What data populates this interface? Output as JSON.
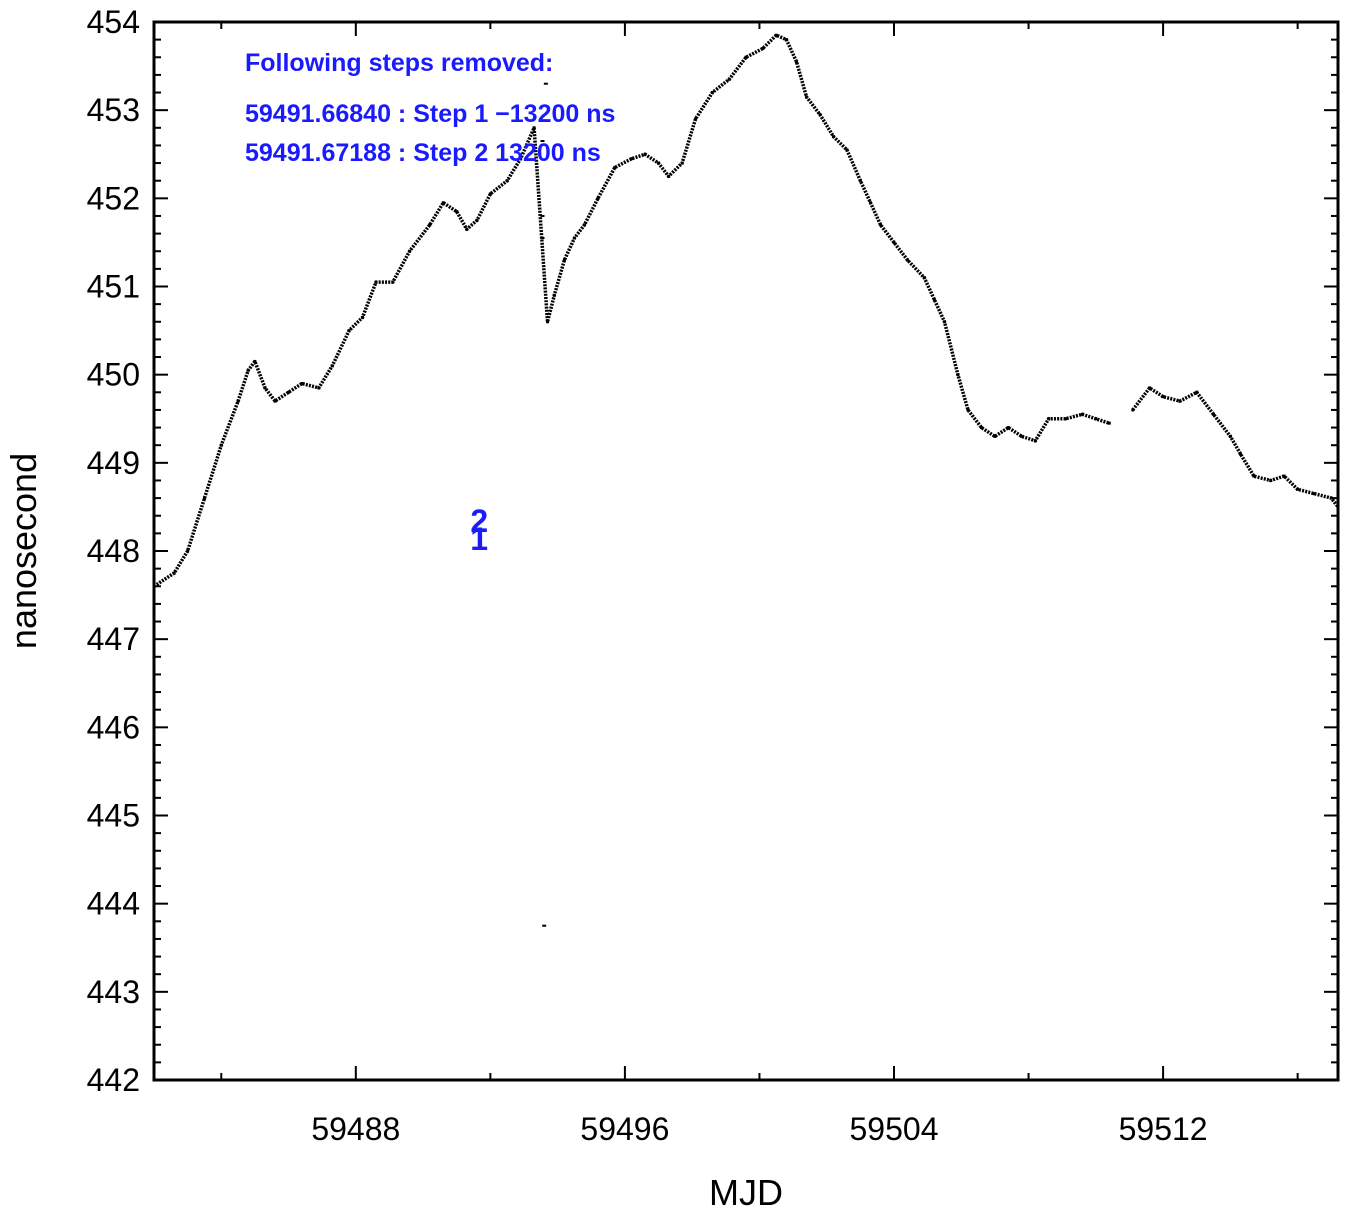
{
  "chart_data": {
    "type": "scatter",
    "title": "",
    "xlabel": "MJD",
    "ylabel": "nanosecond",
    "xlim": [
      59482,
      59517.2
    ],
    "ylim": [
      442,
      454
    ],
    "xticks": [
      59488,
      59496,
      59504,
      59512
    ],
    "yticks": [
      442,
      443,
      444,
      445,
      446,
      447,
      448,
      449,
      450,
      451,
      452,
      453,
      454
    ],
    "grid": false,
    "annotation_title": "Following steps removed:",
    "annotation_lines": [
      "59491.66840 : Step 1 −13200 ns",
      "59491.67188 : Step 2 13200 ns"
    ],
    "step_markers": [
      {
        "label": "2",
        "x": 59491.672,
        "y": 448.35
      },
      {
        "label": "1",
        "x": 59491.668,
        "y": 448.15
      }
    ],
    "series": [
      {
        "points": [
          [
            59482.0,
            447.6
          ],
          [
            59482.6,
            447.75
          ],
          [
            59483.0,
            448.0
          ],
          [
            59483.5,
            448.6
          ],
          [
            59484.0,
            449.2
          ],
          [
            59484.5,
            449.7
          ],
          [
            59484.8,
            450.05
          ],
          [
            59485.0,
            450.15
          ],
          [
            59485.3,
            449.85
          ],
          [
            59485.6,
            449.7
          ],
          [
            59486.0,
            449.8
          ],
          [
            59486.4,
            449.9
          ],
          [
            59486.9,
            449.85
          ],
          [
            59487.3,
            450.1
          ],
          [
            59487.8,
            450.5
          ],
          [
            59488.2,
            450.65
          ],
          [
            59488.6,
            451.05
          ],
          [
            59489.1,
            451.05
          ],
          [
            59489.6,
            451.4
          ],
          [
            59490.2,
            451.7
          ],
          [
            59490.6,
            451.95
          ],
          [
            59491.0,
            451.85
          ],
          [
            59491.3,
            451.65
          ],
          [
            59491.6,
            451.75
          ],
          [
            59492.0,
            452.05
          ],
          [
            59492.5,
            452.2
          ],
          [
            59492.9,
            452.45
          ],
          [
            59493.3,
            452.8
          ],
          [
            59493.7,
            450.6
          ],
          [
            59493.9,
            450.9
          ],
          [
            59494.2,
            451.3
          ],
          [
            59494.5,
            451.55
          ],
          [
            59494.8,
            451.7
          ],
          [
            59495.2,
            452.0
          ],
          [
            59495.7,
            452.35
          ],
          [
            59496.2,
            452.45
          ],
          [
            59496.6,
            452.5
          ],
          [
            59497.0,
            452.4
          ],
          [
            59497.3,
            452.25
          ],
          [
            59497.7,
            452.4
          ],
          [
            59498.1,
            452.9
          ],
          [
            59498.6,
            453.2
          ],
          [
            59499.1,
            453.35
          ],
          [
            59499.6,
            453.6
          ],
          [
            59500.1,
            453.7
          ],
          [
            59500.5,
            453.85
          ],
          [
            59500.8,
            453.8
          ],
          [
            59501.1,
            453.55
          ],
          [
            59501.4,
            453.15
          ],
          [
            59501.8,
            452.95
          ],
          [
            59502.2,
            452.7
          ],
          [
            59502.6,
            452.55
          ],
          [
            59503.0,
            452.2
          ],
          [
            59503.3,
            451.95
          ],
          [
            59503.6,
            451.7
          ],
          [
            59504.0,
            451.5
          ],
          [
            59504.4,
            451.3
          ],
          [
            59504.9,
            451.1
          ],
          [
            59505.2,
            450.85
          ],
          [
            59505.5,
            450.6
          ],
          [
            59505.9,
            450.0
          ],
          [
            59506.2,
            449.6
          ],
          [
            59506.6,
            449.4
          ],
          [
            59507.0,
            449.3
          ],
          [
            59507.4,
            449.4
          ],
          [
            59507.8,
            449.3
          ],
          [
            59508.2,
            449.25
          ],
          [
            59508.6,
            449.5
          ],
          [
            59509.1,
            449.5
          ],
          [
            59509.6,
            449.55
          ],
          [
            59510.0,
            449.5
          ],
          [
            59510.4,
            449.45
          ],
          [
            59511.1,
            449.6
          ],
          [
            59511.6,
            449.85
          ],
          [
            59512.0,
            449.75
          ],
          [
            59512.5,
            449.7
          ],
          [
            59513.0,
            449.8
          ],
          [
            59513.5,
            449.55
          ],
          [
            59514.0,
            449.3
          ],
          [
            59514.3,
            449.1
          ],
          [
            59514.7,
            448.85
          ],
          [
            59515.2,
            448.8
          ],
          [
            59515.6,
            448.85
          ],
          [
            59516.0,
            448.7
          ],
          [
            59516.5,
            448.65
          ],
          [
            59517.0,
            448.6
          ],
          [
            59517.2,
            448.5
          ]
        ]
      }
    ],
    "outliers": [
      [
        59493.55,
        452.65
      ],
      [
        59493.55,
        451.8
      ],
      [
        59493.55,
        451.55
      ],
      [
        59493.65,
        453.3
      ],
      [
        59493.6,
        443.75
      ]
    ]
  }
}
